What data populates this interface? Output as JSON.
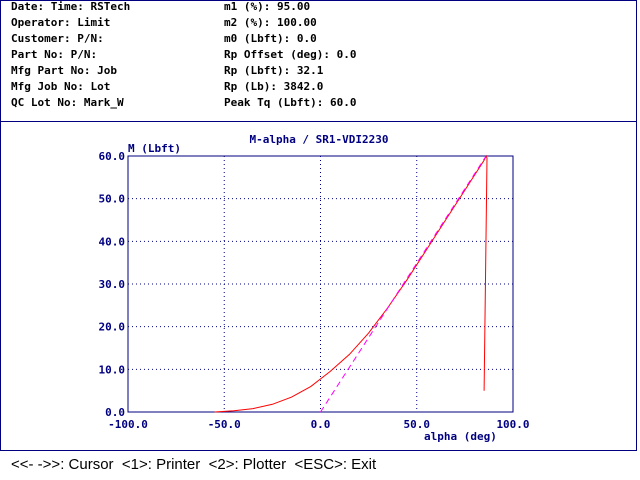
{
  "header": {
    "left": [
      "Date: Time: RSTech",
      "Operator: Limit",
      "Customer: P/N:",
      "Part No: P/N:",
      "Mfg Part No: Job",
      "Mfg Job No: Lot",
      "QC Lot No: Mark_W"
    ],
    "right": [
      "m1 (%): 95.00",
      "m2 (%): 100.00",
      "m0 (Lbft): 0.0",
      "Rp Offset (deg): 0.0",
      "Rp (Lbft): 32.1",
      "Rp (Lb): 3842.0",
      "Peak Tq (Lbft): 60.0"
    ]
  },
  "footer": "<<- ->>: Cursor  <1>: Printer  <2>: Plotter  <ESC>: Exit",
  "colors": {
    "curve": "#ff0000",
    "fit_line": "#ff00ff",
    "axes": "#000080",
    "grid": "#000080"
  },
  "chart_data": {
    "type": "line",
    "title": "M-alpha / SR1-VDI2230",
    "xlabel": "alpha (deg)",
    "ylabel": "M (Lbft)",
    "xlim": [
      -100,
      100
    ],
    "ylim": [
      0,
      60
    ],
    "x_ticks": [
      "-100.0",
      "-50.0",
      "0.0",
      "50.0",
      "100.0"
    ],
    "y_ticks": [
      "0.0",
      "10.0",
      "20.0",
      "30.0",
      "40.0",
      "50.0",
      "60.0"
    ],
    "grid": true,
    "series": [
      {
        "style": "solid",
        "color": "#ff0000",
        "points": [
          [
            -55,
            0
          ],
          [
            -45,
            0.3
          ],
          [
            -35,
            0.8
          ],
          [
            -25,
            1.8
          ],
          [
            -15,
            3.5
          ],
          [
            -5,
            6
          ],
          [
            5,
            9.5
          ],
          [
            15,
            13.5
          ],
          [
            25,
            18.5
          ],
          [
            35,
            24.5
          ],
          [
            45,
            31
          ],
          [
            55,
            38
          ],
          [
            65,
            45
          ],
          [
            75,
            52
          ],
          [
            85,
            59
          ],
          [
            86,
            60
          ],
          [
            86.5,
            59.5
          ],
          [
            85,
            5
          ]
        ]
      },
      {
        "style": "dashed",
        "color": "#ff00ff",
        "points": [
          [
            0,
            0
          ],
          [
            86,
            60
          ]
        ]
      }
    ]
  }
}
